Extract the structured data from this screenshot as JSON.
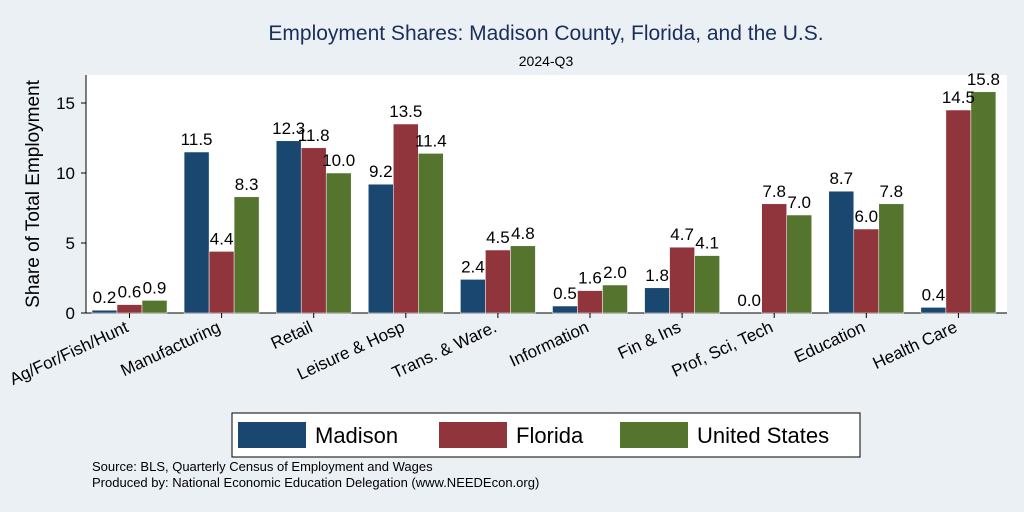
{
  "colors": {
    "background": "#ebf0f5",
    "plot": "#ffffff",
    "title": "#1a2e5a",
    "Madison": "#1a476f",
    "Florida": "#90353b",
    "United States": "#55752f"
  },
  "chart_data": {
    "type": "bar",
    "title": "Employment Shares: Madison County, Florida, and the U.S.",
    "subtitle": "2024-Q3",
    "xlabel": "",
    "ylabel": "Share of Total Employment",
    "ylim": [
      0,
      17
    ],
    "yticks": [
      0,
      5,
      10,
      15
    ],
    "grid": false,
    "legend_position": "bottom",
    "categories": [
      "Ag/For/Fish/Hunt",
      "Manufacturing",
      "Retail",
      "Leisure & Hosp",
      "Trans. & Ware.",
      "Information",
      "Fin & Ins",
      "Prof, Sci, Tech",
      "Education",
      "Health Care"
    ],
    "series": [
      {
        "name": "Madison",
        "values": [
          0.2,
          11.5,
          12.3,
          9.2,
          2.4,
          0.5,
          1.8,
          0.0,
          8.7,
          0.4
        ]
      },
      {
        "name": "Florida",
        "values": [
          0.6,
          4.4,
          11.8,
          13.5,
          4.5,
          1.6,
          4.7,
          7.8,
          6.0,
          14.5
        ]
      },
      {
        "name": "United States",
        "values": [
          0.9,
          8.3,
          10.0,
          11.4,
          4.8,
          2.0,
          4.1,
          7.0,
          7.8,
          15.8
        ]
      }
    ]
  },
  "notes": {
    "source": "Source: BLS, Quarterly Census of Employment and Wages",
    "produced": "Produced by: National Economic Education Delegation (www.NEEDEcon.org)"
  }
}
